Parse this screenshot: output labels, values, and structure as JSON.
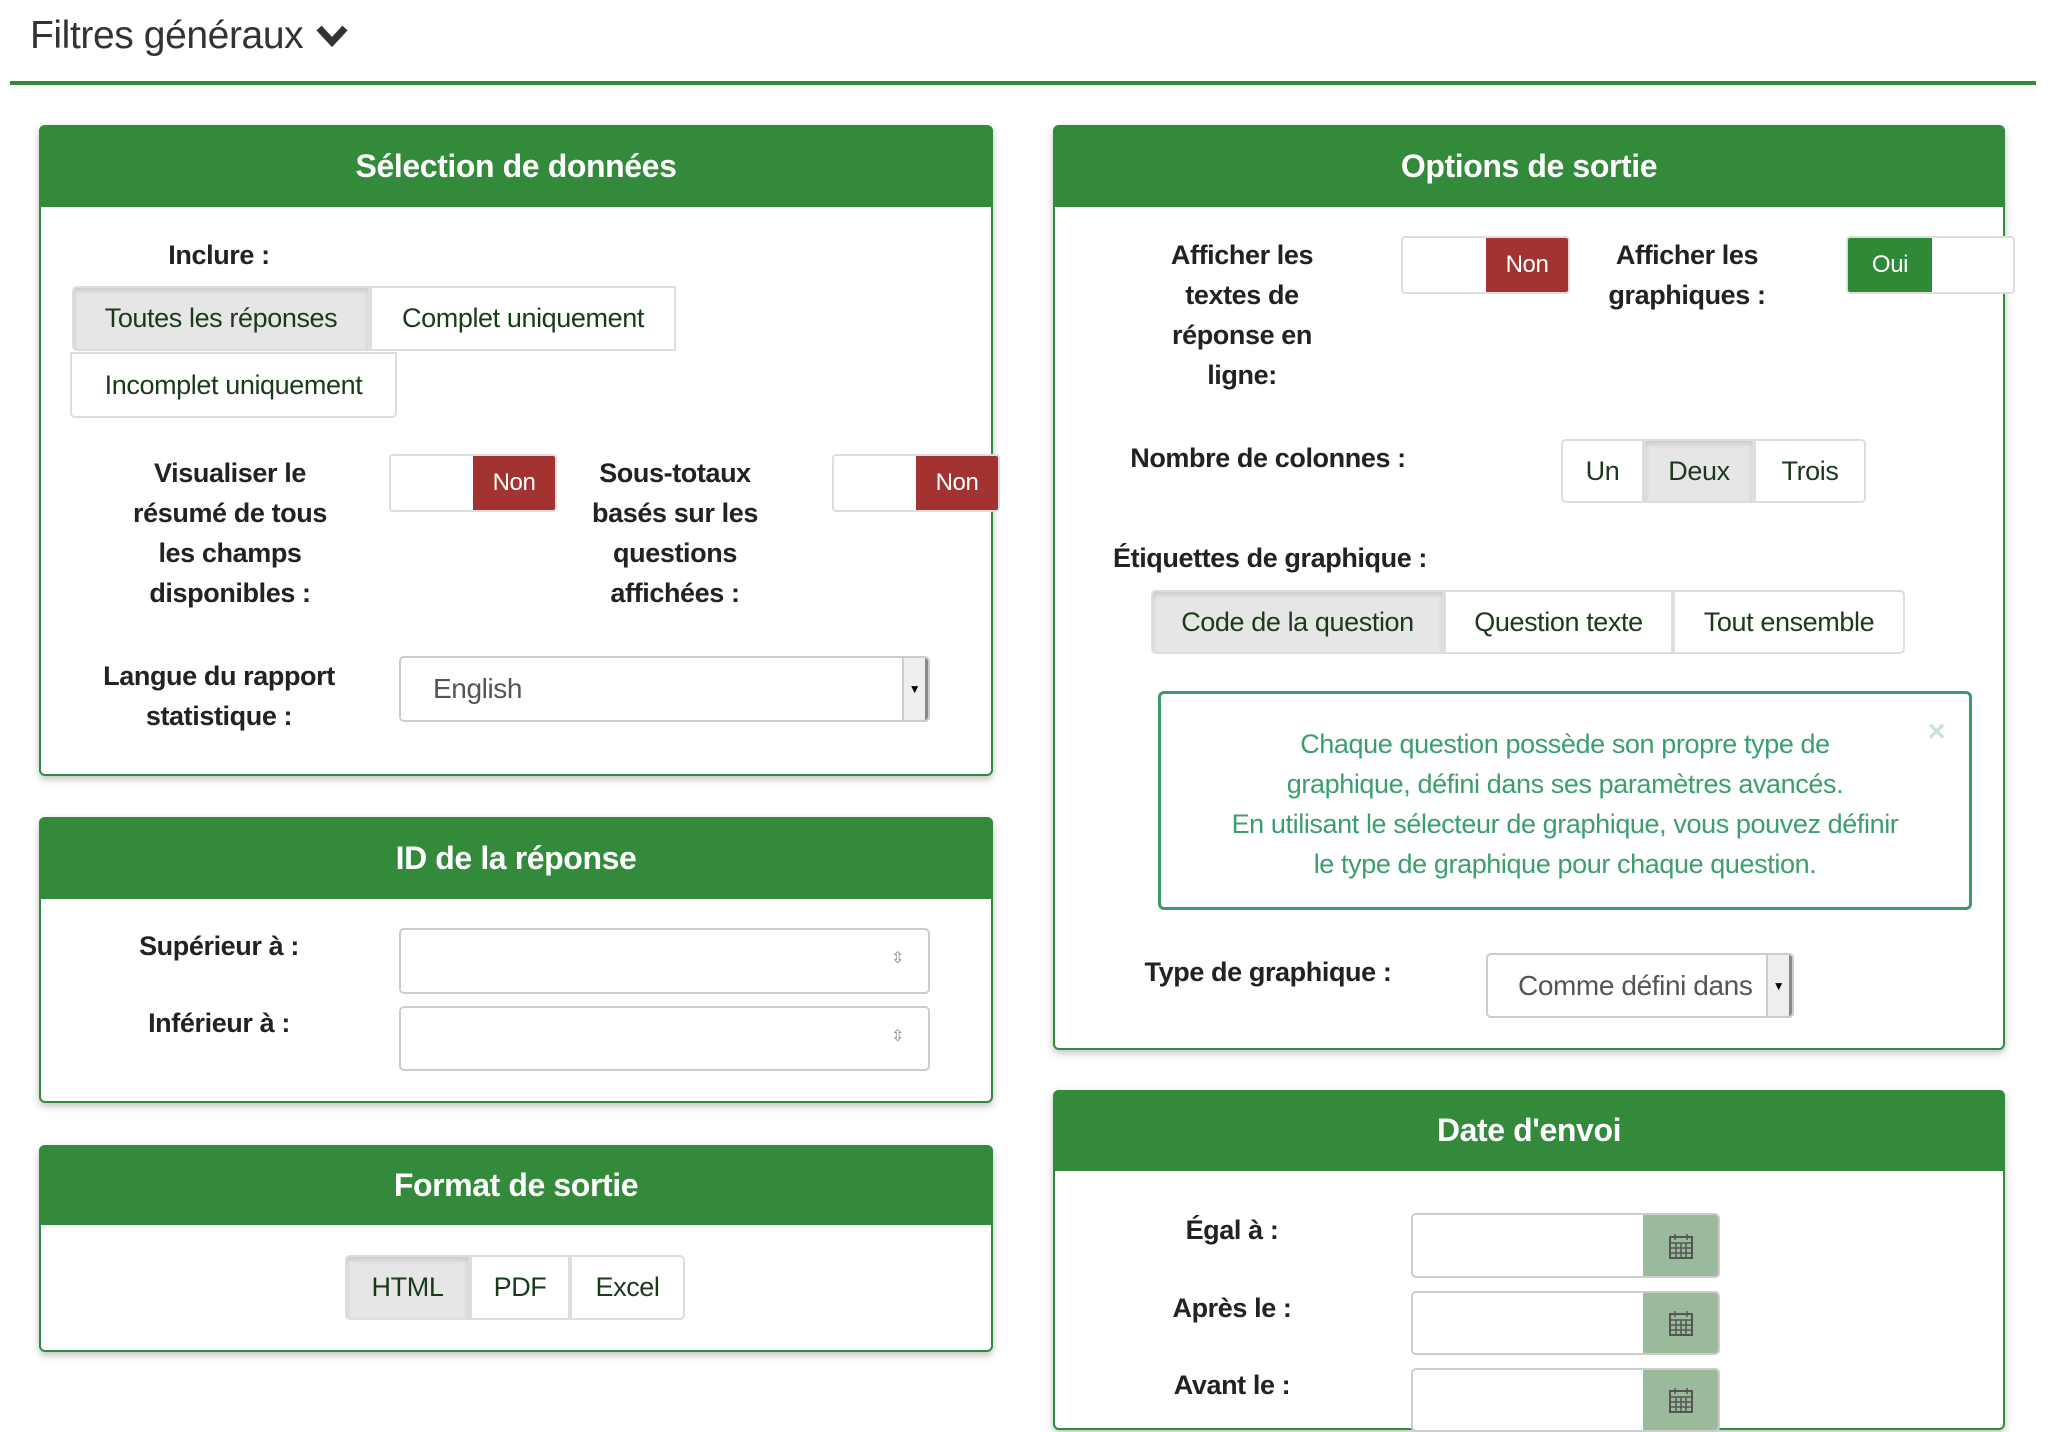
{
  "header": {
    "title": "Filtres généraux",
    "icon": "chevron-down-icon"
  },
  "colors": {
    "primary": "#338a3a",
    "no": "#a33330",
    "yes": "#2e8a36",
    "alert": "#3a9f6c",
    "addon": "#9aba9c"
  },
  "data_selection": {
    "title": "Sélection de données",
    "include_label": "Inclure :",
    "include_options": [
      "Toutes les réponses",
      "Complet uniquement",
      "Incomplet uniquement"
    ],
    "include_selected": "Toutes les réponses",
    "summary_label": "Visualiser le résumé de tous les champs disponibles :",
    "summary_value": "Non",
    "subtotals_label": "Sous-totaux basés sur les questions affichées :",
    "subtotals_value": "Non",
    "language_label": "Langue du rapport statistique :",
    "language_value": "English"
  },
  "response_id": {
    "title": "ID de la réponse",
    "greater_label": "Supérieur à :",
    "greater_value": "",
    "less_label": "Inférieur à :",
    "less_value": ""
  },
  "output_format": {
    "title": "Format de sortie",
    "options": [
      "HTML",
      "PDF",
      "Excel"
    ],
    "selected": "HTML"
  },
  "output_options": {
    "title": "Options de sortie",
    "inline_label": "Afficher les textes de réponse en ligne:",
    "inline_value": "Non",
    "graphs_label": "Afficher les graphiques :",
    "graphs_value": "Oui",
    "columns_label": "Nombre de colonnes :",
    "columns_options": [
      "Un",
      "Deux",
      "Trois"
    ],
    "columns_selected": "Deux",
    "labels_label": "Étiquettes de graphique :",
    "labels_options": [
      "Code de la question",
      "Question texte",
      "Tout ensemble"
    ],
    "labels_selected": "Code de la question",
    "alert_lines": [
      "Chaque question possède son propre type de",
      "graphique, défini dans ses paramètres avancés.",
      "En utilisant le sélecteur de graphique, vous pouvez définir",
      "le type de graphique pour chaque question."
    ],
    "alert_close": "×",
    "chart_type_label": "Type de graphique :",
    "chart_type_value": "Comme défini dans"
  },
  "submit_date": {
    "title": "Date d'envoi",
    "equal_label": "Égal à :",
    "after_label": "Après le :",
    "before_label": "Avant le :"
  }
}
